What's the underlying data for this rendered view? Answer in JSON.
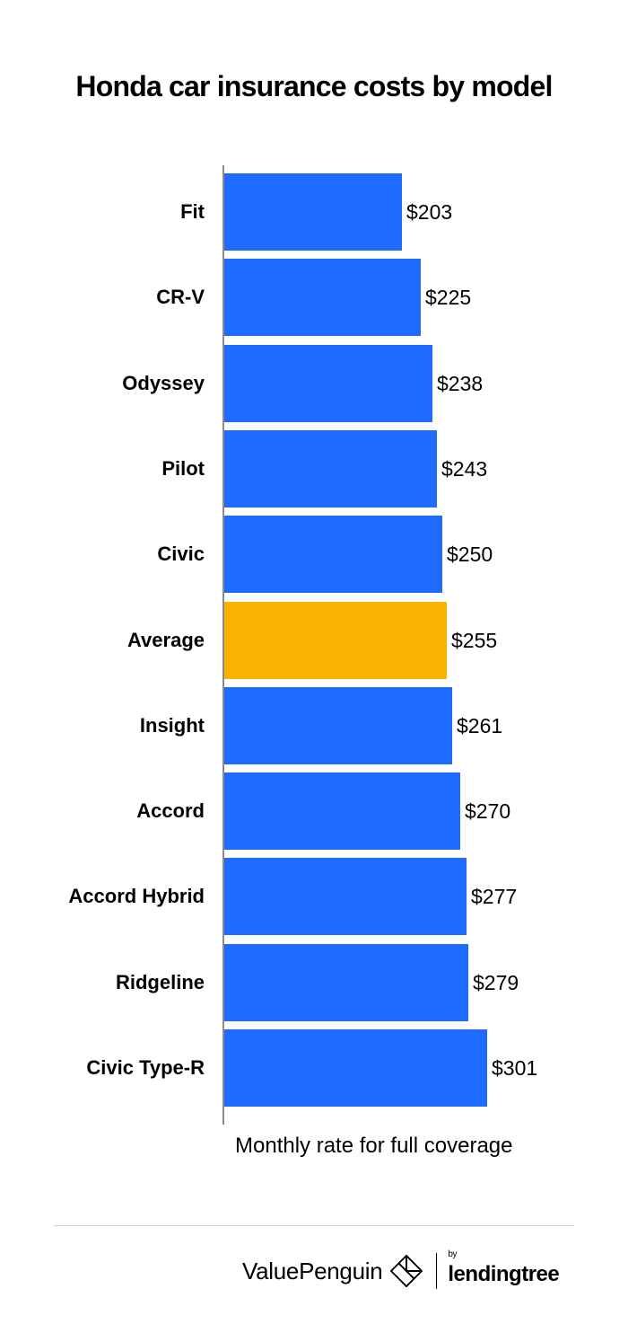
{
  "title": "Honda car insurance costs by model",
  "xlabel": "Monthly rate for full coverage",
  "colors": {
    "bar": "#1F6BFF",
    "highlight": "#F9B200",
    "axis": "#8a8a8a"
  },
  "rows": [
    {
      "label": "Fit",
      "value": 203,
      "display": "$203"
    },
    {
      "label": "CR-V",
      "value": 225,
      "display": "$225"
    },
    {
      "label": "Odyssey",
      "value": 238,
      "display": "$238"
    },
    {
      "label": "Pilot",
      "value": 243,
      "display": "$243"
    },
    {
      "label": "Civic",
      "value": 250,
      "display": "$250"
    },
    {
      "label": "Average",
      "value": 255,
      "display": "$255",
      "highlight": true
    },
    {
      "label": "Insight",
      "value": 261,
      "display": "$261"
    },
    {
      "label": "Accord",
      "value": 270,
      "display": "$270"
    },
    {
      "label": "Accord Hybrid",
      "value": 277,
      "display": "$277"
    },
    {
      "label": "Ridgeline",
      "value": 279,
      "display": "$279"
    },
    {
      "label": "Civic Type-R",
      "value": 301,
      "display": "$301"
    }
  ],
  "footer": {
    "brand": "ValuePenguin",
    "by": "by",
    "partner": "lendingtree"
  },
  "chart_data": {
    "type": "bar",
    "orientation": "horizontal",
    "title": "Honda car insurance costs by model",
    "xlabel": "Monthly rate for full coverage",
    "ylabel": "",
    "categories": [
      "Fit",
      "CR-V",
      "Odyssey",
      "Pilot",
      "Civic",
      "Average",
      "Insight",
      "Accord",
      "Accord Hybrid",
      "Ridgeline",
      "Civic Type-R"
    ],
    "values": [
      203,
      225,
      238,
      243,
      250,
      255,
      261,
      270,
      277,
      279,
      301
    ],
    "value_labels": [
      "$203",
      "$225",
      "$238",
      "$243",
      "$250",
      "$255",
      "$261",
      "$270",
      "$277",
      "$279",
      "$301"
    ],
    "highlighted_category": "Average",
    "unit": "USD per month",
    "xlim": [
      0,
      301
    ],
    "grid": false,
    "legend": null
  }
}
